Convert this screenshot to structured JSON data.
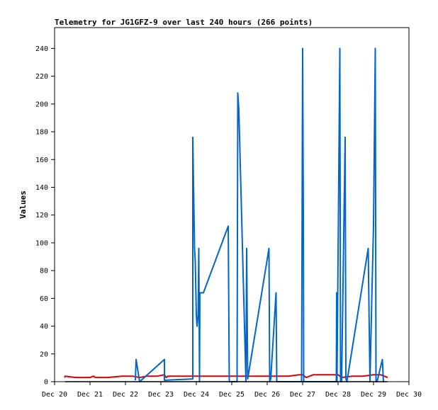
{
  "chart_data": {
    "type": "line",
    "title": "Telemetry for JG1GFZ-9 over last 240 hours (266 points)",
    "xlabel": "",
    "ylabel": "Values",
    "x_unit": "days",
    "x_ticks": [
      {
        "value": 20,
        "label": "Dec 20"
      },
      {
        "value": 21,
        "label": "Dec 21"
      },
      {
        "value": 22,
        "label": "Dec 22"
      },
      {
        "value": 23,
        "label": "Dec 23"
      },
      {
        "value": 24,
        "label": "Dec 24"
      },
      {
        "value": 25,
        "label": "Dec 25"
      },
      {
        "value": 26,
        "label": "Dec 26"
      },
      {
        "value": 27,
        "label": "Dec 27"
      },
      {
        "value": 28,
        "label": "Dec 28"
      },
      {
        "value": 29,
        "label": "Dec 29"
      },
      {
        "value": 30,
        "label": "Dec 30"
      }
    ],
    "xlim": [
      20,
      30
    ],
    "y_ticks": [
      0,
      20,
      40,
      60,
      80,
      100,
      120,
      140,
      160,
      180,
      200,
      220,
      240
    ],
    "ylim": [
      0,
      255
    ],
    "grid": false,
    "legend": "none",
    "series": [
      {
        "color": "#dd0000",
        "x": [
          20.28,
          20.3,
          20.6,
          20.9,
          21.0,
          21.1,
          21.15,
          21.2,
          21.5,
          21.9,
          22.2,
          22.4,
          22.6,
          22.9,
          23.1,
          23.15,
          23.2,
          23.3,
          23.6,
          23.9,
          24.2,
          24.5,
          24.9,
          25.1,
          25.3,
          25.6,
          26.0,
          26.3,
          26.6,
          26.9,
          27.0,
          27.1,
          27.2,
          27.3,
          27.5,
          27.8,
          28.0,
          28.1,
          28.4,
          28.7,
          29.0,
          29.2,
          29.4
        ],
        "y": [
          3,
          4,
          3,
          3,
          3,
          4,
          3,
          3,
          3,
          4,
          4,
          3,
          4,
          4,
          5,
          3,
          4,
          4,
          4,
          4,
          4,
          4,
          4,
          4,
          4,
          4,
          4,
          4,
          4,
          5,
          5,
          3,
          4,
          5,
          5,
          5,
          5,
          3,
          4,
          4,
          5,
          5,
          3
        ]
      },
      {
        "color": "#0066cc",
        "x": [
          22.28,
          22.3,
          22.4,
          23.1,
          23.1,
          23.9,
          23.9,
          23.95,
          23.97,
          24.0,
          24.02,
          24.05,
          24.07,
          24.09,
          24.1,
          24.15,
          24.18,
          24.2,
          24.9,
          24.93,
          25.0,
          25.15,
          25.17,
          25.2,
          25.4,
          25.42,
          25.45,
          26.05,
          26.07,
          26.1,
          26.25,
          26.27,
          26.3,
          26.97,
          27.0,
          27.02,
          27.03,
          27.95,
          27.96,
          27.97,
          28.05,
          28.07,
          28.1,
          28.2,
          28.22,
          28.25,
          28.85,
          28.9,
          28.95,
          29.0,
          29.05,
          29.07,
          29.1,
          29.25,
          29.28,
          29.3
        ],
        "y": [
          1,
          16,
          0,
          16,
          1,
          2,
          176,
          96,
          87,
          48,
          40,
          48,
          96,
          0,
          64,
          64,
          64,
          64,
          112,
          0,
          0,
          0,
          208,
          196,
          0,
          96,
          2,
          96,
          0,
          2,
          64,
          0,
          0,
          0,
          240,
          120,
          0,
          0,
          64,
          0,
          240,
          0,
          0,
          176,
          2,
          0,
          96,
          0,
          58,
          112,
          240,
          0,
          0,
          16,
          0,
          0
        ]
      },
      {
        "color": "#000000",
        "x": [
          20.3,
          29.4
        ],
        "y": [
          0,
          0
        ]
      }
    ]
  }
}
